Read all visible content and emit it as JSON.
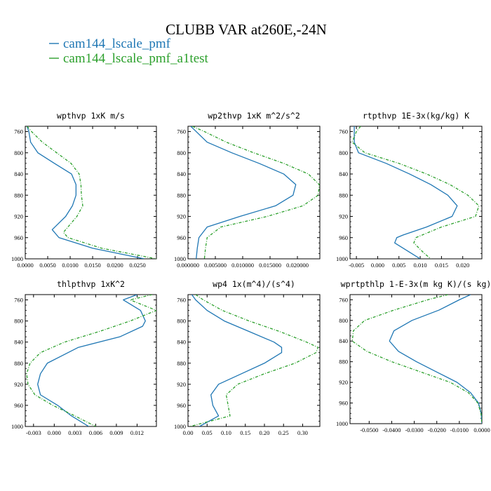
{
  "header": {
    "title": "CLUBB VAR at260E,-24N"
  },
  "legend": [
    {
      "name": "cam144_lscale_pmf",
      "color": "#1f77b4"
    },
    {
      "name": "cam144_lscale_pmf_a1test",
      "color": "#2ca02c"
    }
  ],
  "chart_data": [
    {
      "type": "line",
      "title": "wpthvp  1xK m/s",
      "y_label_ticks": [
        "760",
        "800",
        "840",
        "880",
        "920",
        "960",
        "1000"
      ],
      "x_ticks": [
        0,
        0.005,
        0.01,
        0.015,
        0.02,
        0.025
      ],
      "x_tick_labels": [
        "0.0000",
        "0.0050",
        "0.0100",
        "0.0150",
        "0.0200",
        "0.0250"
      ],
      "xlim": [
        0,
        0.0292
      ],
      "ylim": [
        1000,
        750
      ],
      "series": [
        {
          "name": "cam144_lscale_pmf",
          "y": [
            750,
            760,
            780,
            800,
            820,
            840,
            860,
            880,
            900,
            920,
            945,
            960,
            980,
            1000
          ],
          "x": [
            0.0004,
            0.0008,
            0.0012,
            0.0028,
            0.0065,
            0.0103,
            0.0113,
            0.0113,
            0.0105,
            0.009,
            0.006,
            0.0075,
            0.015,
            0.0265
          ]
        },
        {
          "name": "cam144_lscale_pmf_a1test",
          "y": [
            750,
            760,
            780,
            800,
            820,
            840,
            860,
            880,
            900,
            920,
            950,
            960,
            980,
            1000
          ],
          "x": [
            0.0004,
            0.0014,
            0.0038,
            0.007,
            0.0102,
            0.012,
            0.0124,
            0.0125,
            0.0128,
            0.0115,
            0.0085,
            0.0095,
            0.017,
            0.0292
          ]
        }
      ]
    },
    {
      "type": "line",
      "title": "wp2thvp  1xK m^2/s^2",
      "y_label_ticks": [
        "760",
        "800",
        "840",
        "880",
        "920",
        "960",
        "1000"
      ],
      "x_ticks": [
        0,
        0.005,
        0.01,
        0.015,
        0.02
      ],
      "x_tick_labels": [
        "0.000000",
        "0.005000",
        "0.010000",
        "0.015000",
        "0.020000"
      ],
      "xlim": [
        0,
        0.0241
      ],
      "ylim": [
        1000,
        750
      ],
      "series": [
        {
          "name": "cam144_lscale_pmf",
          "y": [
            750,
            760,
            780,
            800,
            820,
            840,
            860,
            880,
            900,
            920,
            940,
            960,
            980,
            1000
          ],
          "x": [
            0.0005,
            0.0015,
            0.0035,
            0.008,
            0.013,
            0.0175,
            0.0197,
            0.0192,
            0.016,
            0.0095,
            0.0035,
            0.002,
            0.0017,
            0.0015
          ]
        },
        {
          "name": "cam144_lscale_pmf_a1test",
          "y": [
            750,
            760,
            780,
            800,
            820,
            840,
            860,
            880,
            900,
            920,
            940,
            960,
            980,
            1000
          ],
          "x": [
            0.0008,
            0.003,
            0.007,
            0.012,
            0.0175,
            0.022,
            0.024,
            0.0238,
            0.021,
            0.0145,
            0.006,
            0.0035,
            0.0032,
            0.003
          ]
        }
      ]
    },
    {
      "type": "line",
      "title": "rtpthvp  1E-3x(kg/kg) K",
      "y_label_ticks": [
        "760",
        "800",
        "840",
        "880",
        "920",
        "960",
        "1000"
      ],
      "x_ticks": [
        -0.005,
        0,
        0.005,
        0.01,
        0.015,
        0.02
      ],
      "x_tick_labels": [
        "-0.005",
        "0.000",
        "0.005",
        "0.010",
        "0.015",
        "0.020"
      ],
      "xlim": [
        -0.0065,
        0.0245
      ],
      "ylim": [
        1000,
        750
      ],
      "series": [
        {
          "name": "cam144_lscale_pmf",
          "y": [
            750,
            760,
            780,
            800,
            820,
            840,
            860,
            880,
            900,
            920,
            940,
            955,
            960,
            970,
            990,
            1000
          ],
          "x": [
            -0.0055,
            -0.0055,
            -0.0055,
            -0.0045,
            0.002,
            0.0075,
            0.0125,
            0.0165,
            0.0187,
            0.0175,
            0.0115,
            0.006,
            0.0045,
            0.004,
            0.008,
            0.01
          ]
        },
        {
          "name": "cam144_lscale_pmf_a1test",
          "y": [
            750,
            760,
            780,
            800,
            820,
            840,
            860,
            880,
            900,
            920,
            940,
            960,
            970,
            990,
            1000
          ],
          "x": [
            -0.004,
            -0.005,
            -0.006,
            -0.003,
            0.005,
            0.0115,
            0.017,
            0.0212,
            0.0238,
            0.023,
            0.015,
            0.009,
            0.0085,
            0.011,
            0.0125
          ]
        }
      ]
    },
    {
      "type": "line",
      "title": "thlpthvp  1xK^2",
      "y_label_ticks": [
        "760",
        "800",
        "840",
        "880",
        "920",
        "960",
        "1000"
      ],
      "x_ticks": [
        -0.003,
        0,
        0.003,
        0.006,
        0.009,
        0.012
      ],
      "x_tick_labels": [
        "-0.003",
        "0.000",
        "0.003",
        "0.006",
        "0.009",
        "0.012"
      ],
      "xlim": [
        -0.0042,
        0.0148
      ],
      "ylim": [
        1000,
        750
      ],
      "series": [
        {
          "name": "cam144_lscale_pmf",
          "y": [
            750,
            760,
            780,
            800,
            810,
            830,
            850,
            880,
            900,
            920,
            940,
            960,
            980,
            1000
          ],
          "x": [
            0.012,
            0.01,
            0.0125,
            0.0132,
            0.0128,
            0.0095,
            0.0035,
            -0.001,
            -0.002,
            -0.0024,
            -0.002,
            0.0005,
            0.0025,
            0.005
          ]
        },
        {
          "name": "cam144_lscale_pmf_a1test",
          "y": [
            750,
            760,
            780,
            800,
            820,
            840,
            860,
            880,
            900,
            920,
            940,
            960,
            980,
            1000
          ],
          "x": [
            0.0142,
            0.011,
            0.0148,
            0.011,
            0.0065,
            0.0015,
            -0.002,
            -0.0035,
            -0.004,
            -0.0038,
            -0.0028,
            -0.0002,
            0.003,
            0.006
          ]
        }
      ]
    },
    {
      "type": "line",
      "title": "wp4  1x(m^4)/(s^4)",
      "y_label_ticks": [
        "760",
        "800",
        "840",
        "880",
        "920",
        "960",
        "1000"
      ],
      "x_ticks": [
        0,
        0.05,
        0.1,
        0.15,
        0.2,
        0.25,
        0.3
      ],
      "x_tick_labels": [
        "0.00",
        "0.05",
        "0.10",
        "0.15",
        "0.20",
        "0.25",
        "0.30"
      ],
      "xlim": [
        0,
        0.345
      ],
      "ylim": [
        1000,
        750
      ],
      "series": [
        {
          "name": "cam144_lscale_pmf",
          "y": [
            750,
            760,
            780,
            800,
            820,
            840,
            850,
            860,
            880,
            900,
            920,
            940,
            960,
            980,
            1000
          ],
          "x": [
            0.01,
            0.02,
            0.05,
            0.095,
            0.16,
            0.225,
            0.245,
            0.245,
            0.2,
            0.14,
            0.08,
            0.06,
            0.065,
            0.08,
            0.03
          ]
        },
        {
          "name": "cam144_lscale_pmf_a1test",
          "y": [
            750,
            760,
            780,
            800,
            820,
            840,
            850,
            860,
            880,
            900,
            920,
            940,
            960,
            980,
            1000
          ],
          "x": [
            0.02,
            0.04,
            0.09,
            0.16,
            0.24,
            0.31,
            0.34,
            0.335,
            0.28,
            0.2,
            0.13,
            0.1,
            0.105,
            0.11,
            0.005
          ]
        }
      ]
    },
    {
      "type": "line",
      "title": "wprtpthlp  1-E-3x(m kg K)/(s kg)",
      "y_label_ticks": [
        "760",
        "800",
        "840",
        "880",
        "920",
        "960",
        "1000"
      ],
      "x_ticks": [
        -0.05,
        -0.04,
        -0.03,
        -0.02,
        -0.01,
        0
      ],
      "x_tick_labels": [
        "-0.0500",
        "-0.0400",
        "-0.0300",
        "-0.0200",
        "-0.0100",
        "0.0000"
      ],
      "xlim": [
        -0.0585,
        0.0
      ],
      "ylim": [
        1000,
        750
      ],
      "series": [
        {
          "name": "cam144_lscale_pmf",
          "y": [
            750,
            760,
            780,
            800,
            820,
            840,
            860,
            880,
            900,
            920,
            940,
            960,
            980,
            1000
          ],
          "x": [
            -0.005,
            -0.01,
            -0.019,
            -0.031,
            -0.039,
            -0.041,
            -0.037,
            -0.029,
            -0.02,
            -0.011,
            -0.005,
            -0.0015,
            -0.0003,
            0.0
          ]
        },
        {
          "name": "cam144_lscale_pmf_a1test",
          "y": [
            750,
            760,
            780,
            800,
            820,
            840,
            860,
            880,
            900,
            920,
            940,
            960,
            980,
            1000
          ],
          "x": [
            -0.015,
            -0.024,
            -0.039,
            -0.052,
            -0.057,
            -0.0575,
            -0.051,
            -0.04,
            -0.027,
            -0.014,
            -0.006,
            -0.0018,
            -0.0004,
            0.0
          ]
        }
      ]
    }
  ]
}
